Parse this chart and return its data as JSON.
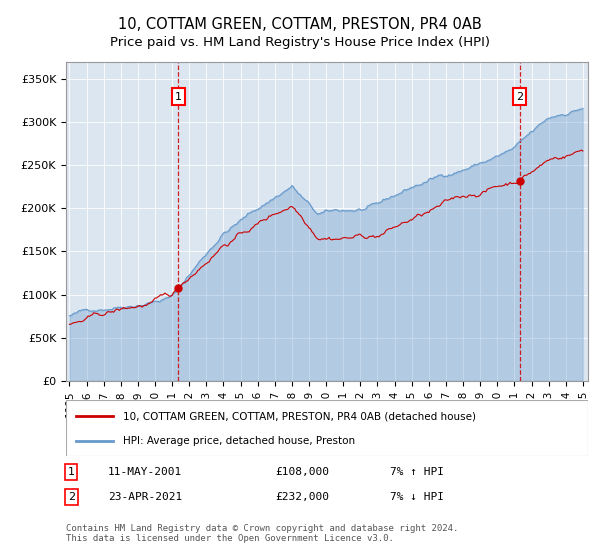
{
  "title": "10, COTTAM GREEN, COTTAM, PRESTON, PR4 0AB",
  "subtitle": "Price paid vs. HM Land Registry's House Price Index (HPI)",
  "x_start_year": 1995,
  "x_end_year": 2025,
  "ylim": [
    0,
    370000
  ],
  "yticks": [
    0,
    50000,
    100000,
    150000,
    200000,
    250000,
    300000,
    350000
  ],
  "ytick_labels": [
    "£0",
    "£50K",
    "£100K",
    "£150K",
    "£200K",
    "£250K",
    "£300K",
    "£350K"
  ],
  "property_color": "#cc0000",
  "hpi_color": "#6699cc",
  "background_color": "#dce6f0",
  "legend_label_property": "10, COTTAM GREEN, COTTAM, PRESTON, PR4 0AB (detached house)",
  "legend_label_hpi": "HPI: Average price, detached house, Preston",
  "sale1_label": "1",
  "sale1_date": "11-MAY-2001",
  "sale1_price": "£108,000",
  "sale1_hpi": "7% ↑ HPI",
  "sale1_year": 2001.37,
  "sale1_value": 108000,
  "sale2_label": "2",
  "sale2_date": "23-APR-2021",
  "sale2_price": "£232,000",
  "sale2_hpi": "7% ↓ HPI",
  "sale2_year": 2021.3,
  "sale2_value": 232000,
  "footnote": "Contains HM Land Registry data © Crown copyright and database right 2024.\nThis data is licensed under the Open Government Licence v3.0."
}
